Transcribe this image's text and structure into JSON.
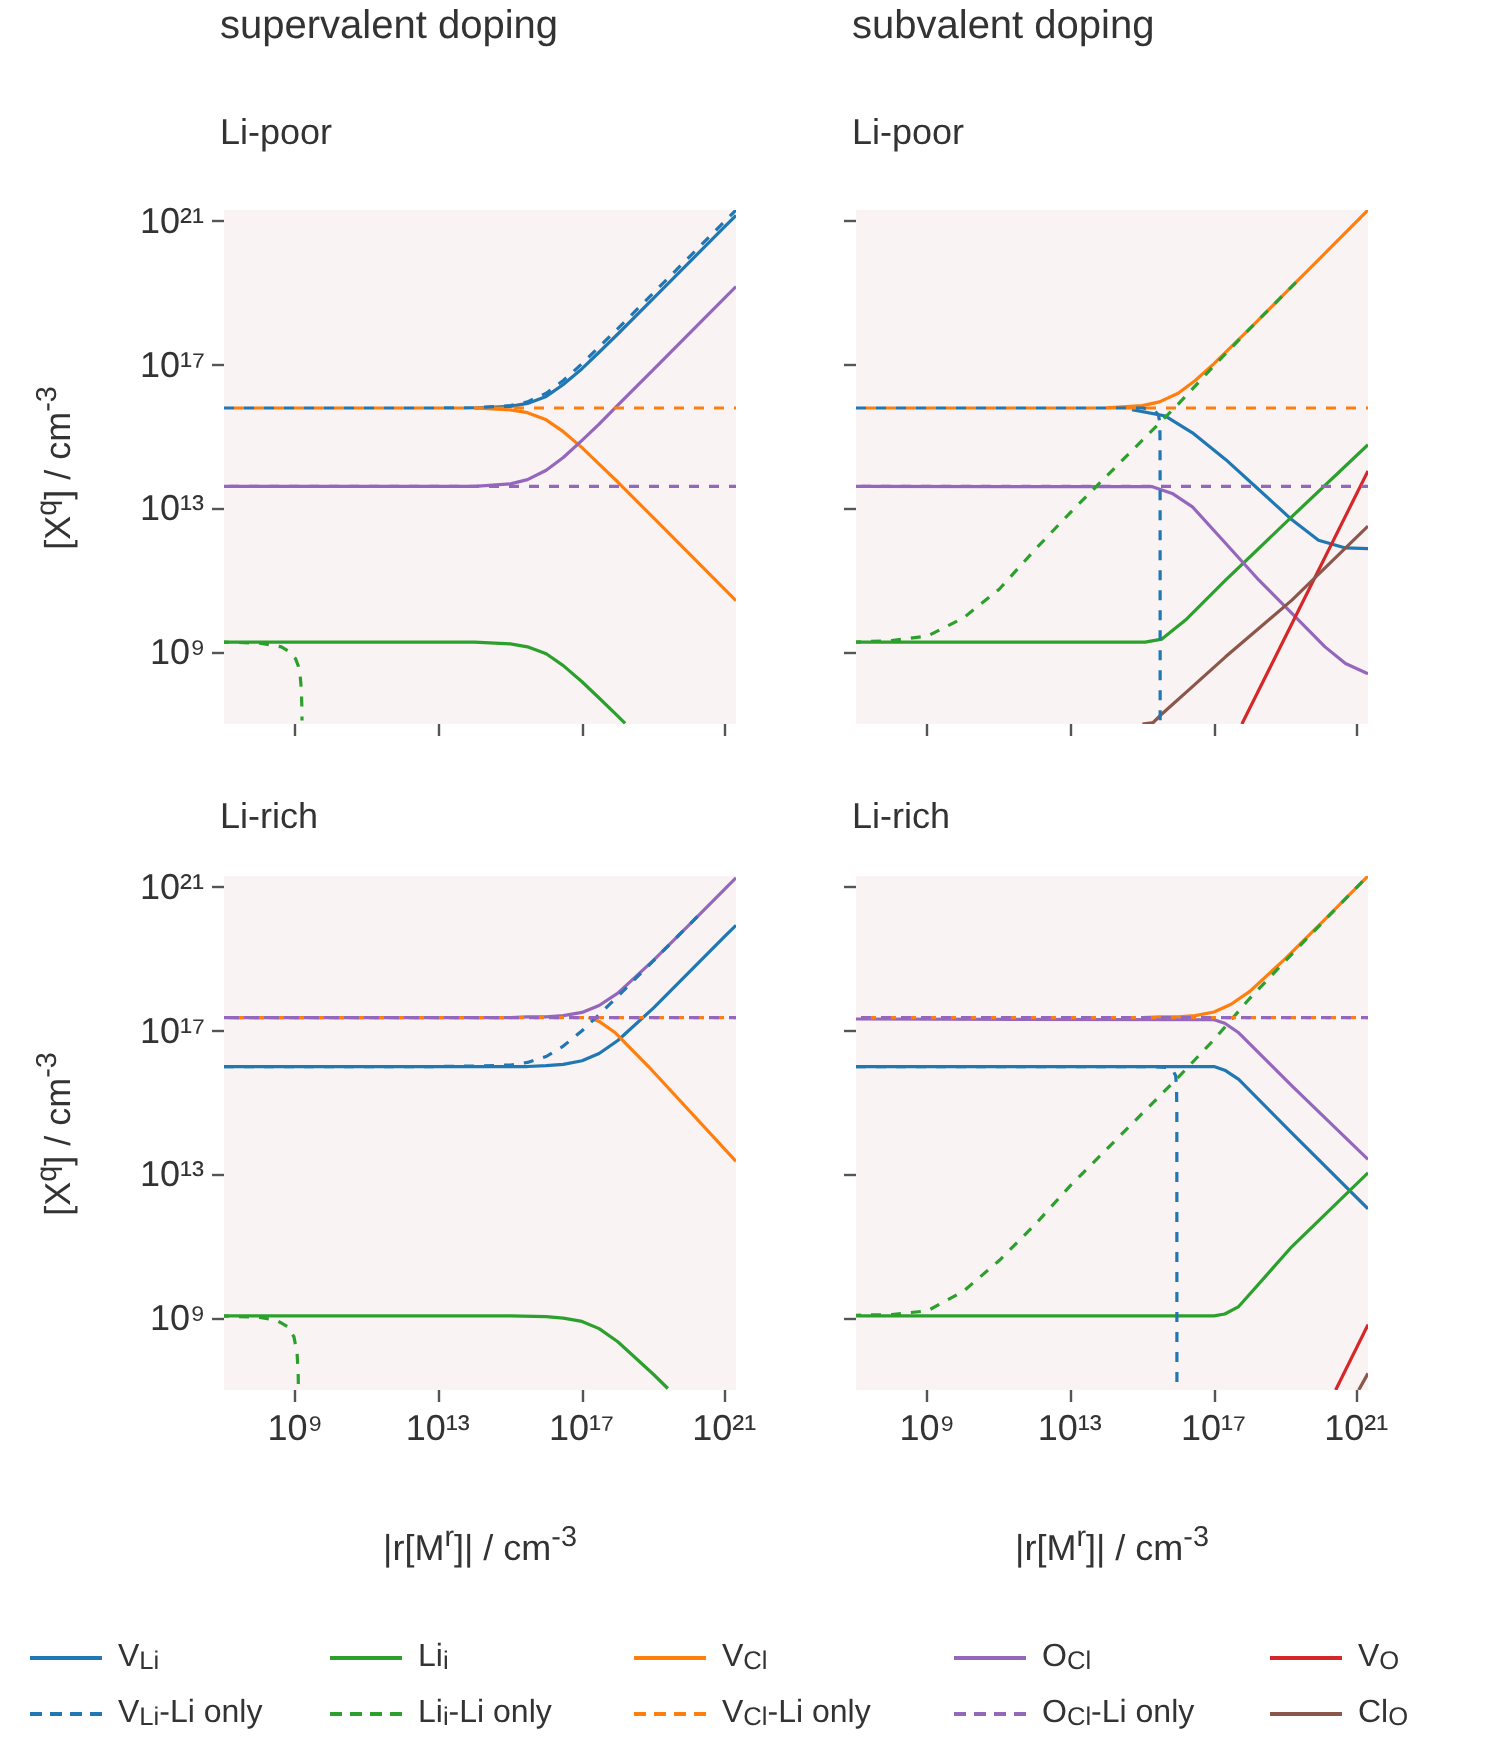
{
  "chart_data": [
    {
      "type": "line",
      "title": "supervalent doping",
      "subtitle": "Li-poor",
      "ylabel": "[X$^{q}$] / cm$^{-3}$",
      "log": "xy",
      "legend": "bottom",
      "tick_labels": "y",
      "xlim": [
        10000000.0,
        2e+21
      ],
      "ylim": [
        10000000.0,
        2e+21
      ],
      "xticks": [
        {
          "value": 1000000000.0,
          "label": "10⁹"
        },
        {
          "value": 10000000000000.0,
          "label": "10¹³"
        },
        {
          "value": 1e+17,
          "label": "10¹⁷"
        },
        {
          "value": 1e+21,
          "label": "10²¹"
        }
      ],
      "yticks": [
        {
          "value": 1000000000.0,
          "label": "10⁹"
        },
        {
          "value": 10000000000000.0,
          "label": "10¹³"
        },
        {
          "value": 1e+17,
          "label": "10¹⁷"
        },
        {
          "value": 1e+21,
          "label": "10²¹"
        }
      ],
      "x": [
        10000000.0,
        1000000000.0,
        100000000000.0,
        10000000000000.0,
        100000000000000.0,
        1000000000000000.0,
        3000000000000000.0,
        1e+16,
        3e+16,
        1e+17,
        3e+17,
        1e+18,
        1e+19,
        1e+20,
        1e+21,
        2e+21
      ],
      "series": [
        {
          "name": "V$_{Li}$",
          "color": "#1f77b4",
          "line_style": "solid",
          "values": [
            null,
            null,
            null,
            null,
            6200000000000000.0,
            6900000000000000.0,
            8300000000000000.0,
            1.3e+16,
            2.8e+16,
            7.7e+16,
            2.2e+17,
            7.1e+17,
            7.1e+18,
            7.1e+19,
            7.1e+20,
            1.41e+21
          ]
        },
        {
          "name": "V$_{Li}$-Li only",
          "color": "#1f77b4",
          "line_style": "dashed",
          "values": [
            6200000000000000.0,
            6200000000000000.0,
            6200000000000000.0,
            6200000000000000.0,
            6300000000000000.0,
            7200000000000000.0,
            9200000000000000.0,
            1.6e+16,
            3.6e+16,
            1.06e+17,
            3.1e+17,
            1e+18,
            1e+19,
            1e+20,
            1e+21,
            2e+21
          ]
        },
        {
          "name": "Li$_{i}$",
          "color": "#2ca02c",
          "line_style": "solid",
          "x": [
            10000000.0,
            1000000000.0,
            100000000000.0,
            10000000000000.0,
            100000000000000.0,
            1000000000000000.0,
            3000000000000000.0,
            1e+16,
            3e+16,
            1e+17,
            3e+17,
            1e+18,
            1.6e+18
          ],
          "values": [
            1900000000.0,
            1900000000.0,
            1900000000.0,
            1900000000.0,
            1900000000.0,
            1700000000.0,
            1400000000.0,
            900000000.0,
            420000000.0,
            150000000.0,
            53000000.0,
            16500000.0,
            10400000.0
          ]
        },
        {
          "name": "Li$_{i}$-Li only",
          "color": "#2ca02c",
          "line_style": "dashed",
          "x": [
            10000000.0,
            100000000.0,
            400000000.0,
            700000000.0,
            1000000000.0,
            1200000000.0,
            1350000000.0,
            1450000000.0,
            1500000000.0,
            1510000000.0
          ],
          "values": [
            1900000000.0,
            1780000000.0,
            1400000000.0,
            1000000000.0,
            650000000.0,
            400000000.0,
            210000000.0,
            88000000.0,
            25000000.0,
            12500000.0
          ]
        },
        {
          "name": "V$_{Cl}$",
          "color": "#ff7f0e",
          "line_style": "solid",
          "values": [
            null,
            null,
            null,
            null,
            6200000000000000.0,
            5500000000000000.0,
            4600000000000000.0,
            2900000000000000.0,
            1360000000000000.0,
            490000000000000.0,
            170000000000000.0,
            54000000000000.0,
            5400000000000.0,
            540000000000.0,
            54000000000.0,
            27000000000.0
          ]
        },
        {
          "name": "V$_{Cl}$-Li only",
          "color": "#ff7f0e",
          "line_style": "dashed",
          "x": [
            10000000.0,
            2e+21
          ],
          "values": [
            6200000000000000.0,
            6200000000000000.0
          ]
        },
        {
          "name": "O$_{Cl}$",
          "color": "#9467bd",
          "line_style": "solid",
          "values": [
            41000000000000.0,
            41000000000000.0,
            41000000000000.0,
            41000000000000.0,
            41000000000000.0,
            48000000000000.0,
            63000000000000.0,
            115000000000000.0,
            260000000000000.0,
            780000000000000.0,
            2200000000000000.0,
            7400000000000000.0,
            7.4e+16,
            7.4e+17,
            7.4e+18,
            1.48e+19
          ]
        },
        {
          "name": "O$_{Cl}$-Li only",
          "color": "#9467bd",
          "line_style": "dashed",
          "x": [
            10000000.0,
            2e+21
          ],
          "values": [
            41000000000000.0,
            41000000000000.0
          ]
        }
      ]
    },
    {
      "type": "line",
      "title": "subvalent doping",
      "subtitle": "Li-poor",
      "log": "xy",
      "legend": "bottom",
      "tick_labels": false,
      "xlim": [
        10000000.0,
        2e+21
      ],
      "ylim": [
        10000000.0,
        2e+21
      ],
      "xticks": [
        {
          "value": 1000000000.0,
          "label": "10⁹"
        },
        {
          "value": 10000000000000.0,
          "label": "10¹³"
        },
        {
          "value": 1e+17,
          "label": "10¹⁷"
        },
        {
          "value": 1e+21,
          "label": "10²¹"
        }
      ],
      "yticks": [
        {
          "value": 1000000000.0,
          "label": "10⁹"
        },
        {
          "value": 10000000000000.0,
          "label": "10¹³"
        },
        {
          "value": 1e+17,
          "label": "10¹⁷"
        },
        {
          "value": 1e+21,
          "label": "10²¹"
        }
      ],
      "x": [
        100000000000000.0,
        1000000000000000.0,
        3000000000000000.0,
        1e+16,
        3e+16,
        1e+17,
        3e+17,
        1e+18,
        1e+19,
        1e+20,
        1e+21,
        2e+21
      ],
      "series": [
        {
          "name": "V$_{Li}$",
          "color": "#1f77b4",
          "line_style": "solid",
          "x": [
            510000000000000.0,
            4400000000000000.0,
            2.5e+16,
            2.1e+17,
            1.8e+18,
            1.5e+19,
            8.3e+19,
            4.7e+20,
            2e+21
          ],
          "values": [
            5600000000000000.0,
            3700000000000000.0,
            1260000000000000.0,
            230000000000000.0,
            33000000000000.0,
            4800000000000.0,
            1300000000000.0,
            790000000000.0,
            760000000000.0
          ]
        },
        {
          "name": "V$_{Li}$-Li only",
          "color": "#1f77b4",
          "line_style": "dashed",
          "x": [
            10000000.0,
            1000000000000000.0,
            1500000000000000.0,
            2200000000000000.0,
            2800000000000000.0,
            3050000000000000.0,
            3100000000000000.0,
            3120000000000000.0,
            3130000000000000.0
          ],
          "values": [
            6200000000000000.0,
            6200000000000000.0,
            5800000000000000.0,
            5200000000000000.0,
            4000000000000000.0,
            2500000000000000.0,
            1000000000000000.0,
            100000000000000.0,
            10000000.0
          ]
        },
        {
          "name": "Li$_{i}$",
          "color": "#2ca02c",
          "line_style": "solid",
          "x": [
            10000000.0,
            1200000000000000.0,
            3500000000000000.0,
            1.6e+16,
            2.1e+17,
            1.5e+19,
            2e+21
          ],
          "values": [
            1900000000.0,
            1900000000.0,
            2300000000.0,
            7800000000.0,
            100000000000.0,
            5900000000000.0,
            590000000000000.0
          ]
        },
        {
          "name": "Li$_{i}$-Li only",
          "color": "#2ca02c",
          "line_style": "dashed",
          "x": [
            10000000.0,
            100000000.0,
            1000000000.0,
            10000000000.0,
            100000000000.0,
            1000000000000.0,
            10000000000000.0,
            100000000000000.0,
            1000000000000000.0,
            1e+16,
            1e+17,
            1e+18,
            2e+19
          ],
          "values": [
            1900000000.0,
            2100000000.0,
            2800000000.0,
            8900000000.0,
            56000000000.0,
            710000000000.0,
            7900000000000.0,
            79000000000000.0,
            790000000000000.0,
            7900000000000000.0,
            9.3e+16,
            1e+18,
            2e+19
          ]
        },
        {
          "name": "V$_{Cl}$",
          "color": "#ff7f0e",
          "line_style": "solid",
          "values": [
            6300000000000000.0,
            7200000000000000.0,
            9200000000000000.0,
            1.6e+16,
            3.6e+16,
            1.06e+17,
            3.1e+17,
            1e+18,
            1e+19,
            1e+20,
            1e+21,
            2e+21
          ]
        },
        {
          "name": "V$_{Cl}$-Li only",
          "color": "#ff7f0e",
          "line_style": "dashed",
          "x": [
            10000000.0,
            2e+21
          ],
          "values": [
            6200000000000000.0,
            6200000000000000.0
          ]
        },
        {
          "name": "O$_{Cl}$",
          "color": "#9467bd",
          "line_style": "solid",
          "x": [
            10000000.0,
            1900000000000000.0,
            6800000000000000.0,
            2.5e+16,
            2.1e+17,
            1.8e+18,
            1.5e+19,
            1.26e+20,
            4.7e+20,
            2e+21
          ],
          "values": [
            41000000000000.0,
            40000000000000.0,
            26000000000000.0,
            11000000000000.0,
            1070000000000.0,
            100000000000.0,
            12000000000.0,
            1400000000.0,
            480000000.0,
            250000000.0
          ]
        },
        {
          "name": "O$_{Cl}$-Li only",
          "color": "#9467bd",
          "line_style": "dashed",
          "x": [
            10000000.0,
            2e+21
          ],
          "values": [
            41000000000000.0,
            41000000000000.0
          ]
        },
        {
          "name": "V$_{O}$",
          "color": "#d62728",
          "line_style": "solid",
          "x": [
            6e+17,
            2e+21
          ],
          "values": [
            10000000.0,
            110000000000000.0
          ]
        },
        {
          "name": "Cl$_{O}$",
          "color": "#8c564b",
          "line_style": "solid",
          "x": [
            1000000000000000.0,
            2000000000000000.0,
            3500000000000000.0,
            2.5e+16,
            2.1e+17,
            1.5e+19,
            2e+21
          ],
          "values": [
            10000000.0,
            11000000.0,
            19000000.0,
            110000000.0,
            740000000.0,
            28000000000.0,
            3200000000000.0
          ]
        }
      ]
    },
    {
      "type": "line",
      "title": "Li-rich",
      "ylabel": "[X$^{q}$] / cm$^{-3}$",
      "xlabel": "|r[M$^{r}$]| / cm$^{-3}$",
      "log": "xy",
      "legend": "bottom",
      "xlim": [
        10000000.0,
        2e+21
      ],
      "ylim": [
        10000000.0,
        2e+21
      ],
      "xticks": [
        {
          "value": 1000000000.0,
          "label": "10⁹"
        },
        {
          "value": 10000000000000.0,
          "label": "10¹³"
        },
        {
          "value": 1e+17,
          "label": "10¹⁷"
        },
        {
          "value": 1e+21,
          "label": "10²¹"
        }
      ],
      "yticks": [
        {
          "value": 1000000000.0,
          "label": "10⁹"
        },
        {
          "value": 10000000000000.0,
          "label": "10¹³"
        },
        {
          "value": 1e+17,
          "label": "10¹⁷"
        },
        {
          "value": 1e+21,
          "label": "10²¹"
        }
      ],
      "x": [
        10000000.0,
        1000000000.0,
        100000000000.0,
        10000000000000.0,
        100000000000000.0,
        1000000000000000.0,
        3000000000000000.0,
        1e+16,
        3e+16,
        1e+17,
        3e+17,
        1e+18,
        1e+19,
        1e+20,
        1e+21,
        2e+21
      ],
      "series": [
        {
          "name": "V$_{Li}$",
          "color": "#1f77b4",
          "line_style": "solid",
          "values": [
            1e+16,
            1e+16,
            1e+16,
            1e+16,
            1e+16,
            1e+16,
            1e+16,
            1.06e+16,
            1.15e+16,
            1.45e+16,
            2.3e+16,
            5.3e+16,
            4.3e+17,
            4.3e+18,
            4.3e+19,
            8.5e+19
          ]
        },
        {
          "name": "V$_{Li}$-Li only",
          "color": "#1f77b4",
          "line_style": "dashed",
          "x": [
            10000000.0,
            1000000000.0,
            100000000000.0,
            10000000000000.0,
            100000000000000.0,
            1000000000000000.0,
            3000000000000000.0,
            1e+16,
            3e+16,
            1e+17,
            3e+17,
            1e+18,
            1e+19,
            2e+20
          ],
          "values": [
            1e+16,
            1e+16,
            1e+16,
            1e+16,
            1.03e+16,
            1.1e+16,
            1.3e+16,
            1.9e+16,
            3.7e+16,
            9.9e+16,
            2.8e+17,
            9e+17,
            8.9e+18,
            1.78e+20
          ]
        },
        {
          "name": "Li$_{i}$",
          "color": "#2ca02c",
          "line_style": "solid",
          "x": [
            10000000.0,
            1000000000000000.0,
            1e+16,
            3e+16,
            1e+17,
            3e+17,
            1e+18,
            1e+19,
            2.5e+19
          ],
          "values": [
            1150000000.0,
            1150000000.0,
            1100000000.0,
            1000000000.0,
            810000000.0,
            510000000.0,
            220000000.0,
            27000000.0,
            11000000.0
          ]
        },
        {
          "name": "Li$_{i}$-Li only",
          "color": "#2ca02c",
          "line_style": "dashed",
          "x": [
            10000000.0,
            100000000.0,
            300000000.0,
            600000000.0,
            900000000.0,
            1100000000.0,
            1180000000.0,
            1200000000.0
          ],
          "values": [
            1140000000.0,
            1050000000.0,
            860000000.0,
            580000000.0,
            300000000.0,
            105000000.0,
            29000000.0,
            10000000.0
          ]
        },
        {
          "name": "V$_{Cl}$",
          "color": "#ff7f0e",
          "line_style": "solid",
          "x": [
            1.5e+17,
            3e+17,
            8.5e+17,
            7.2e+18,
            2e+21
          ],
          "values": [
            2.3e+17,
            1.8e+17,
            8.7e+16,
            1e+16,
            23000000000000.0
          ]
        },
        {
          "name": "V$_{Cl}$-Li only",
          "color": "#ff7f0e",
          "line_style": "dashed",
          "x": [
            10000000.0,
            2e+21
          ],
          "values": [
            2.3e+17,
            2.3e+17
          ]
        },
        {
          "name": "O$_{Cl}$",
          "color": "#9467bd",
          "line_style": "solid",
          "values": [
            2.3e+17,
            2.3e+17,
            2.3e+17,
            2.3e+17,
            2.3e+17,
            2.3e+17,
            2.4e+17,
            2.4e+17,
            2.6e+17,
            3.2e+17,
            5e+17,
            1.1e+18,
            9.1e+18,
            8.9e+19,
            8.9e+20,
            1.78e+21
          ]
        },
        {
          "name": "O$_{Cl}$-Li only",
          "color": "#9467bd",
          "line_style": "dashed",
          "x": [
            10000000.0,
            2e+21
          ],
          "values": [
            2.3e+17,
            2.3e+17
          ]
        }
      ]
    },
    {
      "type": "line",
      "title": "Li-rich",
      "xlabel": "|r[M$^{r}$]| / cm$^{-3}$",
      "log": "xy",
      "legend": "bottom",
      "tick_labels": "x",
      "xlim": [
        10000000.0,
        2e+21
      ],
      "ylim": [
        10000000.0,
        2e+21
      ],
      "xticks": [
        {
          "value": 1000000000.0,
          "label": "10⁹"
        },
        {
          "value": 10000000000000.0,
          "label": "10¹³"
        },
        {
          "value": 1e+17,
          "label": "10¹⁷"
        },
        {
          "value": 1e+21,
          "label": "10²¹"
        }
      ],
      "yticks": [
        {
          "value": 1000000000.0,
          "label": "10⁹"
        },
        {
          "value": 10000000000000.0,
          "label": "10¹³"
        },
        {
          "value": 1e+17,
          "label": "10¹⁷"
        },
        {
          "value": 1e+21,
          "label": "10²¹"
        }
      ],
      "x": [
        1000000000000000.0,
        3000000000000000.0,
        1e+16,
        3e+16,
        1e+17,
        3e+17,
        1e+18,
        1e+19,
        1e+20,
        1e+21,
        2e+21
      ],
      "series": [
        {
          "name": "V$_{Li}$",
          "color": "#1f77b4",
          "line_style": "solid",
          "x": [
            10000000.0,
            1e+17,
            2e+17,
            4.9e+17,
            1.5e+19,
            2e+21
          ],
          "values": [
            1e+16,
            1e+16,
            7900000000000000.0,
            4400000000000000.0,
            140000000000000.0,
            1100000000000.0
          ]
        },
        {
          "name": "V$_{Li}$-Li only",
          "color": "#1f77b4",
          "line_style": "dashed",
          "x": [
            10000000.0,
            1000000000000000.0,
            5000000000000000.0,
            7000000000000000.0,
            8500000000000000.0,
            9000000000000000.0,
            9150000000000000.0,
            9200000000000000.0
          ],
          "values": [
            1e+16,
            1e+16,
            9500000000000000.0,
            8000000000000000.0,
            5500000000000000.0,
            2500000000000000.0,
            500000000000000.0,
            10000000.0
          ]
        },
        {
          "name": "Li$_{i}$",
          "color": "#2ca02c",
          "line_style": "solid",
          "x": [
            10000000.0,
            1e+17,
            2e+17,
            4.9e+17,
            1.5e+19,
            2e+21
          ],
          "values": [
            1150000000.0,
            1150000000.0,
            1300000000.0,
            2100000000.0,
            98000000000.0,
            11000000000000.0
          ]
        },
        {
          "name": "Li$_{i}$-Li only",
          "color": "#2ca02c",
          "line_style": "dashed",
          "x": [
            10000000.0,
            100000000.0,
            1000000000.0,
            10000000000.0,
            100000000000.0,
            1000000000000.0,
            10000000000000.0,
            100000000000000.0,
            1000000000000000.0,
            1e+16,
            1e+17,
            1e+18,
            1e+19,
            1e+20,
            1e+21,
            2e+21
          ],
          "values": [
            1200000000.0,
            1260000000.0,
            1600000000.0,
            5600000000.0,
            40000000000.0,
            400000000000.0,
            5000000000000.0,
            50000000000000.0,
            500000000000000.0,
            5000000000000000.0,
            5.6e+16,
            7.9e+17,
            8.9e+18,
            9.5e+19,
            1e+21,
            2e+21
          ]
        },
        {
          "name": "V$_{Cl}$",
          "color": "#ff7f0e",
          "line_style": "solid",
          "values": [
            2.3e+17,
            2.4e+17,
            2.4e+17,
            2.6e+17,
            3.3e+17,
            5.4e+17,
            1.23e+18,
            1.02e+19,
            1e+20,
            1e+21,
            2e+21
          ]
        },
        {
          "name": "V$_{Cl}$-Li only",
          "color": "#ff7f0e",
          "line_style": "dashed",
          "x": [
            10000000.0,
            2e+21
          ],
          "values": [
            2.3e+17,
            2.3e+17
          ]
        },
        {
          "name": "O$_{Cl}$",
          "color": "#9467bd",
          "line_style": "solid",
          "x": [
            10000000.0,
            1e+17,
            2e+17,
            4.9e+17,
            1.5e+19,
            2e+21
          ],
          "values": [
            2.1e+17,
            2e+17,
            1.6e+17,
            8.7e+16,
            2900000000000000.0,
            26000000000000.0
          ]
        },
        {
          "name": "O$_{Cl}$-Li only",
          "color": "#9467bd",
          "line_style": "dashed",
          "x": [
            10000000.0,
            2e+21
          ],
          "values": [
            2.3e+17,
            2.3e+17
          ]
        },
        {
          "name": "V$_{O}$",
          "color": "#d62728",
          "line_style": "solid",
          "x": [
            2.5e+20,
            2e+21
          ],
          "values": [
            10000000.0,
            660000000.0
          ]
        },
        {
          "name": "Cl$_{O}$",
          "color": "#8c564b",
          "line_style": "solid",
          "x": [
            1.1e+21,
            2e+21
          ],
          "values": [
            10000000.0,
            29000000.0
          ]
        }
      ]
    }
  ]
}
